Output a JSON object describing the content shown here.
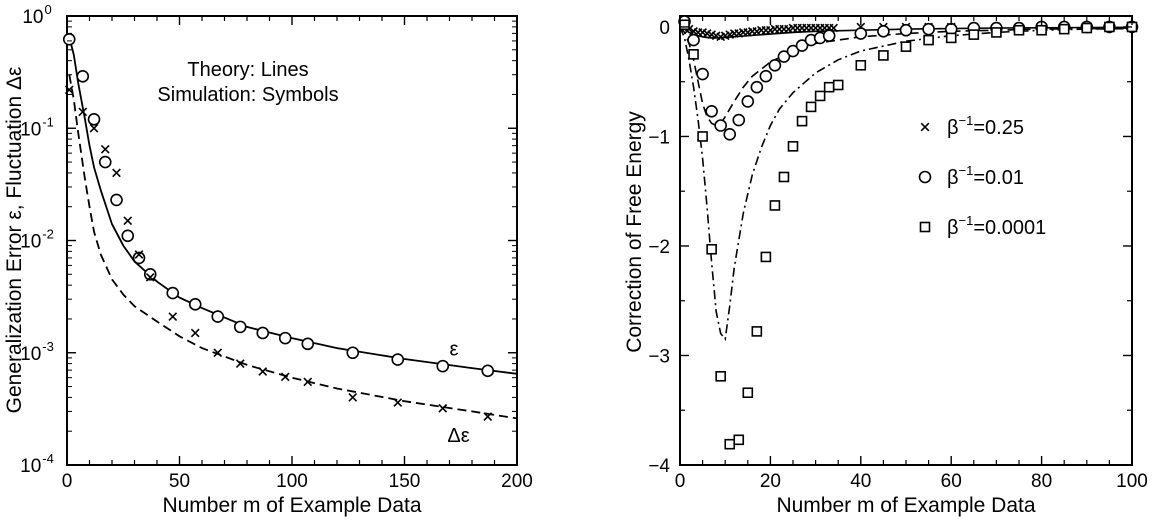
{
  "chart_data": [
    {
      "type": "line",
      "xlabel": "Number m of Example Data",
      "ylabel": "Generalization Error ε, Fluctuation Δε",
      "xlim": [
        0,
        200
      ],
      "ylim": [
        0.0001,
        1
      ],
      "yscale": "log",
      "xticks": [
        0,
        50,
        100,
        150,
        200
      ],
      "yticks": [
        {
          "value": 1,
          "base": "10",
          "exp": "0"
        },
        {
          "value": 0.1,
          "base": "10",
          "exp": "-1"
        },
        {
          "value": 0.01,
          "base": "10",
          "exp": "-2"
        },
        {
          "value": 0.001,
          "base": "10",
          "exp": "-3"
        },
        {
          "value": 0.0001,
          "base": "10",
          "exp": "-4"
        }
      ],
      "annotations": {
        "line1": "Theory: Lines",
        "line2": "Simulation: Symbols"
      },
      "series": [
        {
          "name": "ε",
          "style": "solid",
          "x": [
            1,
            3,
            5,
            8,
            10,
            12,
            15,
            20,
            25,
            30,
            40,
            50,
            60,
            80,
            100,
            120,
            150,
            180,
            200
          ],
          "y": [
            0.65,
            0.45,
            0.25,
            0.12,
            0.07,
            0.045,
            0.028,
            0.014,
            0.009,
            0.0065,
            0.0043,
            0.0031,
            0.0025,
            0.0017,
            0.00135,
            0.0011,
            0.00088,
            0.00073,
            0.00065
          ]
        },
        {
          "name": "Δε",
          "style": "dashed",
          "x": [
            1,
            3,
            5,
            8,
            10,
            12,
            15,
            20,
            25,
            30,
            40,
            50,
            60,
            80,
            100,
            120,
            150,
            180,
            200
          ],
          "y": [
            0.3,
            0.18,
            0.09,
            0.035,
            0.02,
            0.012,
            0.0075,
            0.0045,
            0.0033,
            0.0026,
            0.0019,
            0.0014,
            0.0011,
            0.00078,
            0.0006,
            0.00048,
            0.00037,
            0.0003,
            0.00026
          ]
        },
        {
          "name": "ε",
          "marker": "circle",
          "x": [
            1,
            7,
            12,
            17,
            22,
            27,
            32,
            37,
            47,
            57,
            67,
            77,
            87,
            97,
            107,
            127,
            147,
            167,
            187
          ],
          "y": [
            0.62,
            0.29,
            0.12,
            0.05,
            0.023,
            0.011,
            0.007,
            0.005,
            0.0034,
            0.0027,
            0.0021,
            0.0017,
            0.0015,
            0.00135,
            0.0012,
            0.001,
            0.00087,
            0.00076,
            0.00069
          ]
        },
        {
          "name": "Δε",
          "marker": "cross",
          "x": [
            1,
            7,
            12,
            17,
            22,
            27,
            32,
            37,
            47,
            57,
            67,
            77,
            87,
            97,
            107,
            127,
            147,
            167,
            187
          ],
          "y": [
            0.22,
            0.14,
            0.1,
            0.065,
            0.04,
            0.015,
            0.0075,
            0.0047,
            0.0021,
            0.0015,
            0.001,
            0.0008,
            0.00068,
            0.00061,
            0.00055,
            0.0004,
            0.00036,
            0.00032,
            0.00027
          ]
        }
      ],
      "series_labels": [
        {
          "text": "ε",
          "x": 172,
          "y": 0.00095
        },
        {
          "text": "Δε",
          "x": 174,
          "y": 0.00016
        }
      ]
    },
    {
      "type": "line",
      "xlabel": "Number m of Example Data",
      "ylabel": "Correction of Free Energy",
      "xlim": [
        0,
        100
      ],
      "ylim": [
        -4,
        0.1
      ],
      "xticks": [
        0,
        20,
        40,
        60,
        80,
        100
      ],
      "yticks": [
        0,
        -1,
        -2,
        -3,
        -4
      ],
      "legend": [
        {
          "marker": "cross",
          "base": "β",
          "exp": "−1",
          "value": "=0.25"
        },
        {
          "marker": "circle",
          "base": "β",
          "exp": "−1",
          "value": "=0.01"
        },
        {
          "marker": "square",
          "base": "β",
          "exp": "−1",
          "value": "=0.0001"
        }
      ],
      "series": [
        {
          "name": "β^-1=0.25 theory",
          "style": "solid",
          "x": [
            0,
            1,
            2,
            3,
            4,
            5,
            6,
            7,
            8,
            10,
            15,
            20,
            25,
            30,
            40,
            50,
            60,
            70,
            80,
            90,
            100
          ],
          "y": [
            0,
            -0.02,
            -0.05,
            -0.07,
            -0.08,
            -0.09,
            -0.095,
            -0.1,
            -0.1,
            -0.095,
            -0.08,
            -0.065,
            -0.05,
            -0.04,
            -0.03,
            -0.02,
            -0.015,
            -0.01,
            -0.008,
            -0.005,
            -0.003
          ]
        },
        {
          "name": "β^-1=0.01 theory",
          "style": "dashed",
          "x": [
            0,
            1,
            2,
            3,
            4,
            5,
            6,
            7,
            8,
            9,
            10,
            12,
            14,
            16,
            20,
            25,
            30,
            40,
            50,
            60,
            70,
            80,
            90,
            100
          ],
          "y": [
            0,
            -0.05,
            -0.15,
            -0.3,
            -0.5,
            -0.7,
            -0.82,
            -0.88,
            -0.9,
            -0.88,
            -0.82,
            -0.68,
            -0.55,
            -0.45,
            -0.32,
            -0.22,
            -0.15,
            -0.09,
            -0.06,
            -0.04,
            -0.03,
            -0.02,
            -0.015,
            -0.01
          ]
        },
        {
          "name": "β^-1=0.0001 theory",
          "style": "dashdot",
          "x": [
            0,
            1,
            2,
            3,
            4,
            5,
            6,
            7,
            8,
            9,
            10,
            11,
            12,
            14,
            16,
            18,
            20,
            22,
            25,
            30,
            35,
            40,
            50,
            60,
            70,
            80,
            90,
            100
          ],
          "y": [
            0,
            -0.1,
            -0.3,
            -0.55,
            -0.85,
            -1.2,
            -1.65,
            -2.15,
            -2.6,
            -2.8,
            -2.85,
            -2.55,
            -2.2,
            -1.7,
            -1.35,
            -1.1,
            -0.9,
            -0.75,
            -0.6,
            -0.42,
            -0.3,
            -0.22,
            -0.13,
            -0.08,
            -0.05,
            -0.03,
            -0.02,
            -0.015
          ]
        },
        {
          "name": "β^-1=0.25 simulation",
          "marker": "cross",
          "x": [
            1,
            2,
            3,
            4,
            5,
            6,
            7,
            8,
            9,
            10,
            11,
            12,
            13,
            14,
            15,
            16,
            17,
            18,
            19,
            20,
            21,
            22,
            23,
            24,
            25,
            26,
            27,
            28,
            29,
            30,
            31,
            32,
            33,
            34,
            40,
            45,
            50,
            55,
            60,
            65,
            70,
            75,
            80,
            85,
            90,
            95,
            100
          ],
          "y": [
            0.02,
            -0.02,
            -0.04,
            -0.05,
            -0.05,
            -0.06,
            -0.07,
            -0.08,
            -0.09,
            -0.08,
            -0.07,
            -0.06,
            -0.06,
            -0.05,
            -0.05,
            -0.04,
            -0.04,
            -0.03,
            -0.03,
            -0.03,
            -0.02,
            -0.02,
            -0.02,
            -0.02,
            -0.01,
            -0.01,
            -0.01,
            -0.01,
            -0.01,
            -0.01,
            -0.01,
            -0.01,
            -0.01,
            -0.01,
            0,
            0,
            0,
            0,
            0,
            0,
            0,
            0,
            0,
            0,
            0,
            0,
            0
          ]
        },
        {
          "name": "β^-1=0.01 simulation",
          "marker": "circle",
          "x": [
            1,
            3,
            5,
            7,
            9,
            11,
            13,
            15,
            17,
            19,
            21,
            23,
            25,
            27,
            29,
            31,
            33,
            40,
            45,
            50,
            55,
            60,
            65,
            70,
            75,
            80,
            85,
            90,
            95,
            100
          ],
          "y": [
            0.05,
            -0.12,
            -0.43,
            -0.77,
            -0.9,
            -0.98,
            -0.85,
            -0.68,
            -0.55,
            -0.45,
            -0.35,
            -0.27,
            -0.22,
            -0.17,
            -0.12,
            -0.1,
            -0.08,
            -0.06,
            -0.04,
            -0.03,
            -0.02,
            -0.02,
            -0.01,
            -0.01,
            -0.01,
            0,
            0,
            0,
            0,
            0
          ]
        },
        {
          "name": "β^-1=0.0001 simulation",
          "marker": "square",
          "x": [
            1,
            3,
            5,
            7,
            9,
            11,
            13,
            15,
            17,
            19,
            21,
            23,
            25,
            27,
            29,
            31,
            33,
            35,
            40,
            45,
            50,
            55,
            60,
            65,
            70,
            75,
            80,
            85,
            90,
            95,
            100
          ],
          "y": [
            0.02,
            -0.25,
            -1.0,
            -2.03,
            -3.19,
            -3.81,
            -3.77,
            -3.34,
            -2.78,
            -2.1,
            -1.63,
            -1.37,
            -1.09,
            -0.86,
            -0.73,
            -0.63,
            -0.55,
            -0.53,
            -0.35,
            -0.26,
            -0.18,
            -0.12,
            -0.1,
            -0.07,
            -0.05,
            -0.03,
            -0.03,
            -0.02,
            -0.01,
            0,
            0
          ]
        }
      ]
    }
  ]
}
